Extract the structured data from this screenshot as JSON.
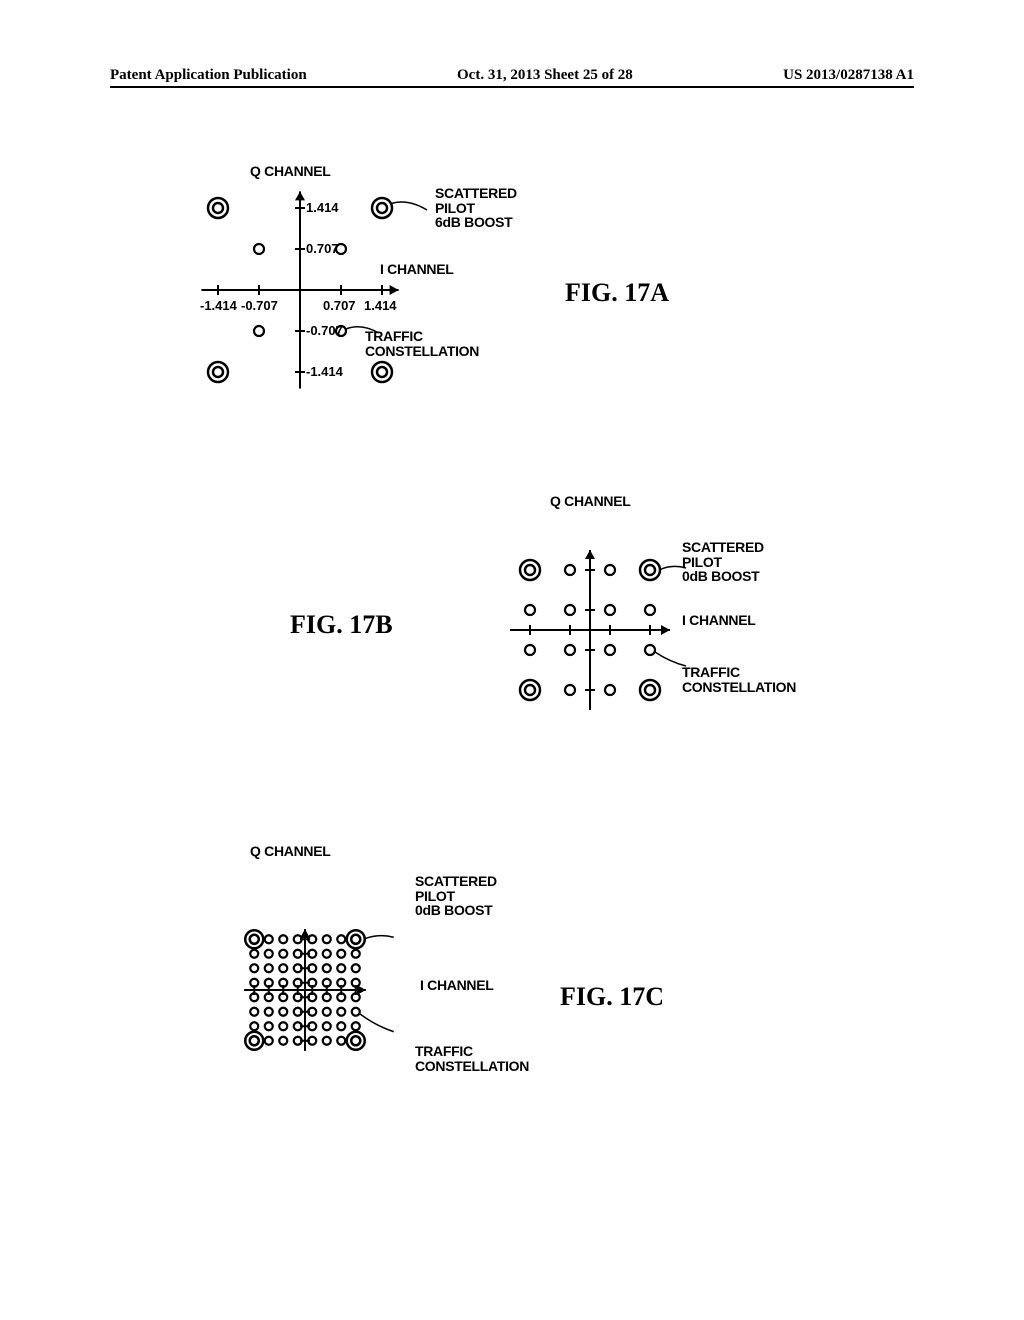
{
  "header": {
    "left": "Patent Application Publication",
    "mid": "Oct. 31, 2013  Sheet 25 of 28",
    "right": "US 2013/0287138 A1"
  },
  "figA": {
    "label": "FIG. 17A",
    "q_label": "Q CHANNEL",
    "i_label": "I CHANNEL",
    "pilot_annot": "SCATTERED\nPILOT\n6dB BOOST",
    "traffic_annot": "TRAFFIC\nCONSTELLATION",
    "ticks_x": [
      -1.414,
      -0.707,
      0.707,
      1.414
    ],
    "ticks_y": [
      1.414,
      0.707,
      -0.707,
      -1.414
    ],
    "scale": 58,
    "pilot_points": [
      [
        -1.414,
        1.414
      ],
      [
        1.414,
        1.414
      ],
      [
        -1.414,
        -1.414
      ],
      [
        1.414,
        -1.414
      ]
    ],
    "traffic_points": [
      [
        -0.707,
        0.707
      ],
      [
        0.707,
        0.707
      ],
      [
        -0.707,
        -0.707
      ],
      [
        0.707,
        -0.707
      ]
    ],
    "pilot_r_outer": 10,
    "pilot_r_inner": 5,
    "traffic_r": 5,
    "axis_extent": 1.7
  },
  "figB": {
    "label": "FIG. 17B",
    "q_label": "Q CHANNEL",
    "i_label": "I CHANNEL",
    "pilot_annot": "SCATTERED\nPILOT\n0dB BOOST",
    "traffic_annot": "TRAFFIC\nCONSTELLATION",
    "scale": 40,
    "ticks": [
      -1.5,
      -0.5,
      0.5,
      1.5
    ],
    "pilot_points": [
      [
        -1.5,
        1.5
      ],
      [
        1.5,
        1.5
      ],
      [
        -1.5,
        -1.5
      ],
      [
        1.5,
        -1.5
      ]
    ],
    "pilot_r_outer": 10,
    "pilot_r_inner": 5,
    "traffic_r": 5,
    "axis_extent": 2.0
  },
  "figC": {
    "label": "FIG. 17C",
    "q_label": "Q CHANNEL",
    "i_label": "I CHANNEL",
    "pilot_annot": "SCATTERED\nPILOT\n0dB BOOST",
    "traffic_annot": "TRAFFIC\nCONSTELLATION",
    "scale": 14.5,
    "ticks": [
      -3.5,
      -2.5,
      -1.5,
      -0.5,
      0.5,
      1.5,
      2.5,
      3.5
    ],
    "pilot_points": [
      [
        -3.5,
        3.5
      ],
      [
        3.5,
        3.5
      ],
      [
        -3.5,
        -3.5
      ],
      [
        3.5,
        -3.5
      ]
    ],
    "pilot_r_outer": 9,
    "pilot_r_inner": 4.5,
    "traffic_r": 4,
    "axis_extent": 4.2
  },
  "colors": {
    "stroke": "#000000",
    "bg": "#ffffff"
  }
}
